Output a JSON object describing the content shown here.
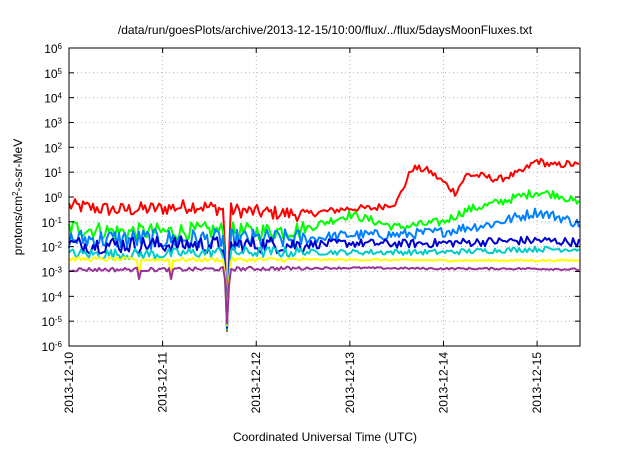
{
  "chart_data": {
    "type": "line",
    "title": "/data/run/goesPlots/archive/2013-12-15/10:00/flux/../flux/5daysMoonFluxes.txt",
    "xlabel": "Coordinated Universal Time (UTC)",
    "ylabel": {
      "prefix": "protons/cm",
      "sup": "2",
      "suffix": "-s-sr-MeV"
    },
    "x_scale": "time",
    "xlim": [
      "2013-12-10T00:00",
      "2013-12-15T11:00"
    ],
    "x_ticks": [
      "2013-12-10",
      "2013-12-11",
      "2013-12-12",
      "2013-12-13",
      "2013-12-14",
      "2013-12-15"
    ],
    "y_scale": "log",
    "ylim": [
      1e-06,
      1000000.0
    ],
    "y_ticks": [
      {
        "base": "10",
        "exp": "-6",
        "value": 1e-06
      },
      {
        "base": "10",
        "exp": "-5",
        "value": 1e-05
      },
      {
        "base": "10",
        "exp": "-4",
        "value": 0.0001
      },
      {
        "base": "10",
        "exp": "-3",
        "value": 0.001
      },
      {
        "base": "10",
        "exp": "-2",
        "value": 0.01
      },
      {
        "base": "10",
        "exp": "-1",
        "value": 0.1
      },
      {
        "base": "10",
        "exp": "0",
        "value": 1
      },
      {
        "base": "10",
        "exp": "1",
        "value": 10
      },
      {
        "base": "10",
        "exp": "2",
        "value": 100
      },
      {
        "base": "10",
        "exp": "3",
        "value": 1000.0
      },
      {
        "base": "10",
        "exp": "4",
        "value": 10000.0
      },
      {
        "base": "10",
        "exp": "5",
        "value": 100000.0
      },
      {
        "base": "10",
        "exp": "6",
        "value": 1000000.0
      }
    ],
    "grid": true,
    "legend": "none",
    "series": [
      {
        "color": "#ff0000",
        "x": [
          "2013-12-10T00:00",
          "2013-12-10T12:00",
          "2013-12-11T00:00",
          "2013-12-11T08:00",
          "2013-12-11T18:00",
          "2013-12-12T00:00",
          "2013-12-12T12:00",
          "2013-12-13T00:00",
          "2013-12-13T06:00",
          "2013-12-13T12:00",
          "2013-12-13T14:00",
          "2013-12-13T16:00",
          "2013-12-13T20:00",
          "2013-12-14T00:00",
          "2013-12-14T03:00",
          "2013-12-14T06:00",
          "2013-12-14T10:00",
          "2013-12-14T14:00",
          "2013-12-14T20:00",
          "2013-12-15T00:00",
          "2013-12-15T04:00",
          "2013-12-15T08:00",
          "2013-12-15T11:00"
        ],
        "y": [
          0.45,
          0.3,
          0.35,
          0.45,
          0.3,
          0.25,
          0.2,
          0.35,
          0.35,
          0.6,
          3,
          15,
          12,
          4,
          1.5,
          8,
          7,
          5,
          10,
          30,
          18,
          22,
          18
        ]
      },
      {
        "color": "#00ff00",
        "x": [
          "2013-12-10T00:00",
          "2013-12-10T12:00",
          "2013-12-11T00:00",
          "2013-12-11T12:00",
          "2013-12-12T00:00",
          "2013-12-12T12:00",
          "2013-12-13T00:00",
          "2013-12-13T12:00",
          "2013-12-14T00:00",
          "2013-12-14T06:00",
          "2013-12-14T12:00",
          "2013-12-15T00:00",
          "2013-12-15T06:00",
          "2013-12-15T11:00"
        ],
        "y": [
          0.06,
          0.04,
          0.04,
          0.045,
          0.04,
          0.05,
          0.2,
          0.06,
          0.1,
          0.3,
          0.5,
          1.6,
          1.2,
          0.5
        ]
      },
      {
        "color": "#0080ff",
        "x": [
          "2013-12-10T00:00",
          "2013-12-10T12:00",
          "2013-12-11T00:00",
          "2013-12-11T12:00",
          "2013-12-12T00:00",
          "2013-12-12T12:00",
          "2013-12-13T00:00",
          "2013-12-13T12:00",
          "2013-12-14T00:00",
          "2013-12-14T06:00",
          "2013-12-14T12:00",
          "2013-12-15T00:00",
          "2013-12-15T06:00",
          "2013-12-15T11:00"
        ],
        "y": [
          0.02,
          0.02,
          0.02,
          0.02,
          0.02,
          0.02,
          0.03,
          0.03,
          0.04,
          0.06,
          0.08,
          0.25,
          0.15,
          0.08
        ]
      },
      {
        "color": "#0000cc",
        "x": [
          "2013-12-10T00:00",
          "2013-12-10T12:00",
          "2013-12-11T00:00",
          "2013-12-11T12:00",
          "2013-12-12T00:00",
          "2013-12-12T12:00",
          "2013-12-13T00:00",
          "2013-12-13T12:00",
          "2013-12-14T00:00",
          "2013-12-14T12:00",
          "2013-12-15T00:00",
          "2013-12-15T11:00"
        ],
        "y": [
          0.012,
          0.012,
          0.012,
          0.012,
          0.012,
          0.012,
          0.014,
          0.013,
          0.014,
          0.016,
          0.018,
          0.015
        ]
      },
      {
        "color": "#00cccc",
        "x": [
          "2013-12-10T00:00",
          "2013-12-10T12:00",
          "2013-12-11T00:00",
          "2013-12-11T12:00",
          "2013-12-12T00:00",
          "2013-12-12T12:00",
          "2013-12-13T00:00",
          "2013-12-13T12:00",
          "2013-12-14T00:00",
          "2013-12-14T12:00",
          "2013-12-15T00:00",
          "2013-12-15T11:00"
        ],
        "y": [
          0.005,
          0.005,
          0.005,
          0.006,
          0.006,
          0.006,
          0.006,
          0.006,
          0.006,
          0.007,
          0.008,
          0.008
        ]
      },
      {
        "color": "#ffff00",
        "x": [
          "2013-12-10T00:00",
          "2013-12-11T00:00",
          "2013-12-12T00:00",
          "2013-12-13T00:00",
          "2013-12-14T00:00",
          "2013-12-15T00:00",
          "2013-12-15T11:00"
        ],
        "y": [
          0.0032,
          0.003,
          0.003,
          0.003,
          0.0028,
          0.0028,
          0.0028
        ]
      },
      {
        "color": "#993399",
        "x": [
          "2013-12-10T00:00",
          "2013-12-11T00:00",
          "2013-12-12T00:00",
          "2013-12-13T00:00",
          "2013-12-14T00:00",
          "2013-12-15T00:00",
          "2013-12-15T11:00"
        ],
        "y": [
          0.0012,
          0.0012,
          0.0013,
          0.0014,
          0.0013,
          0.0013,
          0.0012
        ]
      }
    ],
    "dips": [
      {
        "x": "2013-12-11T16:30",
        "min": 4e-06
      },
      {
        "x": "2013-12-10T18:00",
        "min": 0.0005
      },
      {
        "x": "2013-12-11T02:00",
        "min": 0.0005
      }
    ]
  }
}
